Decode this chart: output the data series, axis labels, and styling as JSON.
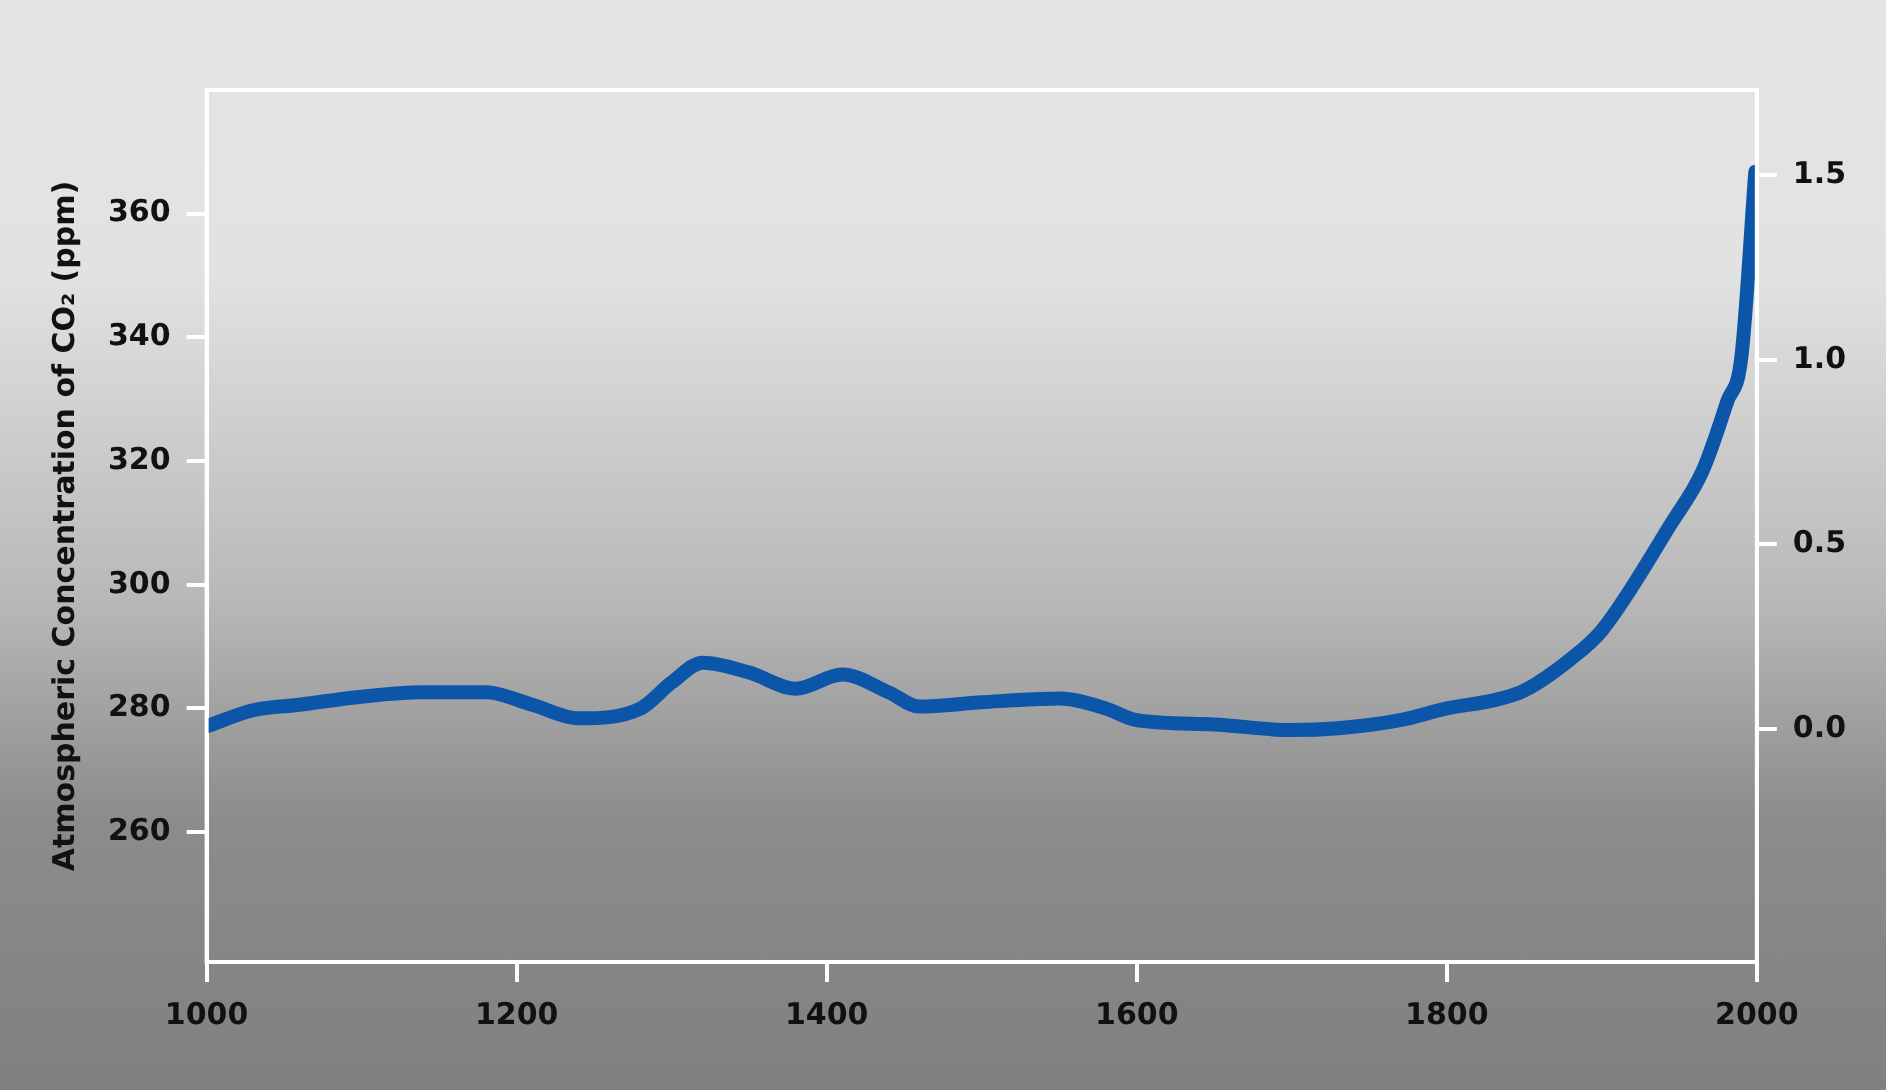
{
  "chart_data": {
    "type": "line",
    "ylabel": "Atmospheric Concentration of CO₂ (ppm)",
    "x": [
      1000,
      1030,
      1060,
      1100,
      1140,
      1180,
      1210,
      1240,
      1280,
      1300,
      1320,
      1350,
      1380,
      1410,
      1440,
      1460,
      1500,
      1550,
      1580,
      1600,
      1650,
      1700,
      1730,
      1770,
      1800,
      1830,
      1850,
      1880,
      1900,
      1945,
      1965,
      1981,
      1990,
      1999
    ],
    "series": [
      {
        "color": "#0b56a8",
        "values": [
          277.1,
          279.7,
          280.6,
          281.9,
          282.6,
          282.6,
          280.6,
          278.4,
          280,
          284.2,
          287.4,
          285.8,
          283.2,
          285.5,
          282.6,
          280.3,
          281,
          281.6,
          280,
          278.1,
          277.4,
          276.5,
          276.8,
          278.1,
          280,
          281.3,
          282.9,
          288,
          292.6,
          310,
          318.4,
          329.7,
          336.8,
          366.8
        ]
      }
    ],
    "xlim": [
      1000,
      2000
    ],
    "xticks": [
      1000,
      1200,
      1400,
      1600,
      1800,
      2000
    ],
    "ylim": [
      239,
      380
    ],
    "yticks": [
      260,
      280,
      300,
      320,
      340,
      360
    ],
    "y2lim": [
      -0.63,
      1.73
    ],
    "y2ticks": [
      {
        "value": 0,
        "label": "0.0"
      },
      {
        "value": 0.5,
        "label": "0.5"
      },
      {
        "value": 1,
        "label": "1.0"
      },
      {
        "value": 1.5,
        "label": "1.5"
      }
    ],
    "grid": false,
    "legend": false,
    "marker": "none",
    "line_style": "solid"
  }
}
